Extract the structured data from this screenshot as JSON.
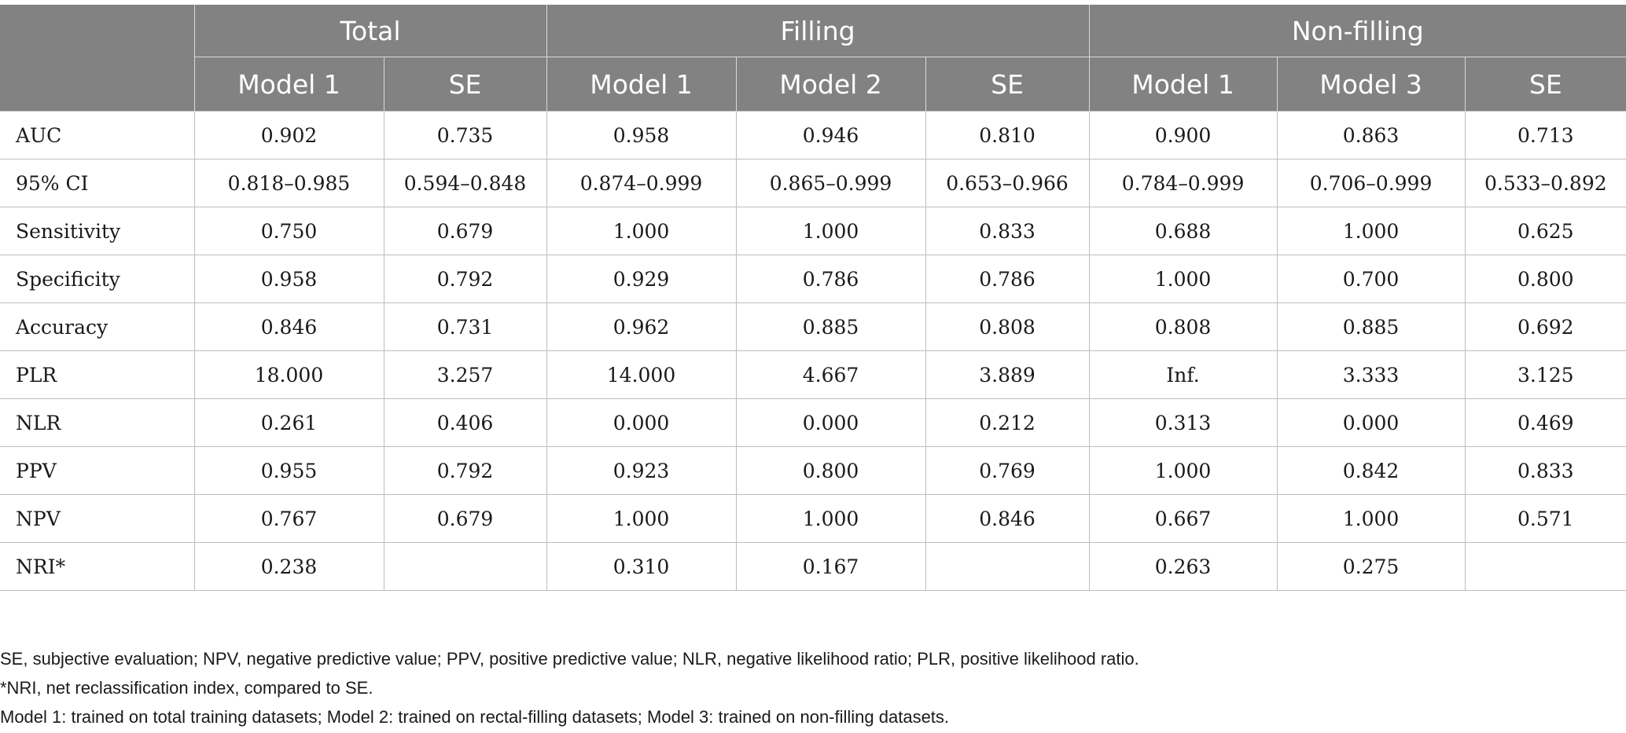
{
  "table": {
    "groups": [
      {
        "label": "Total"
      },
      {
        "label": "Filling"
      },
      {
        "label": "Non-filling"
      }
    ],
    "columns": [
      "Model 1",
      "SE",
      "Model 1",
      "Model 2",
      "SE",
      "Model 1",
      "Model 3",
      "SE"
    ],
    "rows": [
      {
        "label": "AUC",
        "values": [
          "0.902",
          "0.735",
          "0.958",
          "0.946",
          "0.810",
          "0.900",
          "0.863",
          "0.713"
        ]
      },
      {
        "label": "95% CI",
        "values": [
          "0.818–0.985",
          "0.594–0.848",
          "0.874–0.999",
          "0.865–0.999",
          "0.653–0.966",
          "0.784–0.999",
          "0.706–0.999",
          "0.533–0.892"
        ]
      },
      {
        "label": "Sensitivity",
        "values": [
          "0.750",
          "0.679",
          "1.000",
          "1.000",
          "0.833",
          "0.688",
          "1.000",
          "0.625"
        ]
      },
      {
        "label": "Specificity",
        "values": [
          "0.958",
          "0.792",
          "0.929",
          "0.786",
          "0.786",
          "1.000",
          "0.700",
          "0.800"
        ]
      },
      {
        "label": "Accuracy",
        "values": [
          "0.846",
          "0.731",
          "0.962",
          "0.885",
          "0.808",
          "0.808",
          "0.885",
          "0.692"
        ]
      },
      {
        "label": "PLR",
        "values": [
          "18.000",
          "3.257",
          "14.000",
          "4.667",
          "3.889",
          "Inf.",
          "3.333",
          "3.125"
        ]
      },
      {
        "label": "NLR",
        "values": [
          "0.261",
          "0.406",
          "0.000",
          "0.000",
          "0.212",
          "0.313",
          "0.000",
          "0.469"
        ]
      },
      {
        "label": "PPV",
        "values": [
          "0.955",
          "0.792",
          "0.923",
          "0.800",
          "0.769",
          "1.000",
          "0.842",
          "0.833"
        ]
      },
      {
        "label": "NPV",
        "values": [
          "0.767",
          "0.679",
          "1.000",
          "1.000",
          "0.846",
          "0.667",
          "1.000",
          "0.571"
        ]
      },
      {
        "label": "NRI*",
        "values": [
          "0.238",
          "",
          "0.310",
          "0.167",
          "",
          "0.263",
          "0.275",
          ""
        ]
      }
    ]
  },
  "footnotes": [
    "SE, subjective evaluation; NPV, negative predictive value; PPV, positive predictive value; NLR, negative likelihood ratio; PLR, positive likelihood ratio.",
    "*NRI, net reclassification index, compared to SE.",
    "Model 1: trained on total training datasets; Model 2: trained on rectal-filling datasets; Model 3: trained on non-filling datasets."
  ],
  "colors": {
    "header_background": "#828282",
    "header_text": "#ffffff",
    "grid_line": "#bdbdbd"
  }
}
